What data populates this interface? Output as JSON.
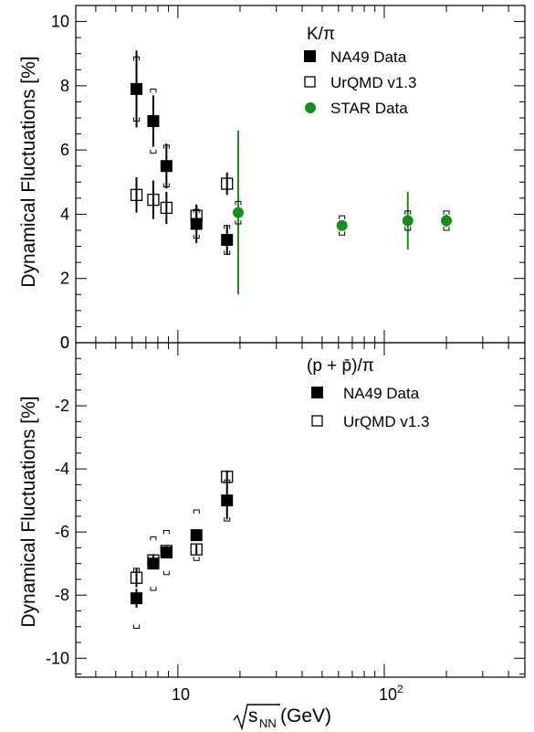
{
  "chart_data": [
    {
      "type": "scatter",
      "title": "",
      "panel_label": "K/π",
      "xlabel": "√sNN (GeV)",
      "ylabel": "Dynamical Fluctuations [%]",
      "xscale": "log",
      "xlim": [
        3.2,
        480
      ],
      "ylim": [
        0,
        10.5
      ],
      "yticks": [
        0,
        2,
        4,
        6,
        8,
        10
      ],
      "grid": false,
      "legend_position": "top-right",
      "series": [
        {
          "name": "NA49 Data",
          "marker": "filled-square",
          "color": "#000000",
          "x": [
            6.3,
            7.6,
            8.8,
            12.3,
            17.3
          ],
          "y": [
            7.9,
            6.9,
            5.5,
            3.7,
            3.2
          ],
          "stat_err": [
            1.2,
            0.8,
            0.7,
            0.6,
            0.45
          ],
          "sys_err": [
            1.0,
            1.0,
            0.65,
            0.45,
            0.45
          ]
        },
        {
          "name": "UrQMD v1.3",
          "marker": "open-square",
          "color": "#000000",
          "x": [
            6.3,
            7.6,
            8.8,
            12.3,
            17.3
          ],
          "y": [
            4.6,
            4.45,
            4.2,
            3.95,
            4.95
          ],
          "stat_err": [
            0.55,
            0.6,
            0.5,
            0.35,
            0.35
          ],
          "sys_err": [
            0,
            0,
            0,
            0,
            0
          ]
        },
        {
          "name": "STAR Data",
          "marker": "filled-circle",
          "color": "#1a8c1a",
          "x": [
            19.6,
            62.4,
            130,
            200
          ],
          "y": [
            4.05,
            3.65,
            3.8,
            3.8
          ],
          "stat_err": [
            2.55,
            0.15,
            0.9,
            0.2
          ],
          "sys_err": [
            0.35,
            0.3,
            0.3,
            0.3
          ]
        }
      ]
    },
    {
      "type": "scatter",
      "title": "",
      "panel_label": "(p + p̄)/π",
      "xlabel": "√sNN (GeV)",
      "ylabel": "Dynamical Fluctuations [%]",
      "xscale": "log",
      "xlim": [
        3.2,
        480
      ],
      "xticks_labeled": [
        10,
        100
      ],
      "ylim": [
        -10.6,
        0
      ],
      "yticks": [
        -10,
        -8,
        -6,
        -4,
        -2,
        0
      ],
      "grid": false,
      "legend_position": "top-right",
      "series": [
        {
          "name": "NA49 Data",
          "marker": "filled-square",
          "color": "#000000",
          "x": [
            6.3,
            7.6,
            8.8,
            12.3,
            17.3
          ],
          "y": [
            -8.1,
            -7.0,
            -6.65,
            -6.1,
            -5.0
          ],
          "stat_err": [
            0.3,
            0.15,
            0.15,
            0.15,
            0.6
          ],
          "sys_err": [
            0.95,
            0.85,
            0.7,
            0.8,
            0.65
          ]
        },
        {
          "name": "UrQMD v1.3",
          "marker": "open-square",
          "color": "#000000",
          "x": [
            6.3,
            7.6,
            8.8,
            12.3,
            17.3
          ],
          "y": [
            -7.45,
            -6.9,
            -6.6,
            -6.55,
            -4.25
          ],
          "stat_err": [
            0.3,
            0.2,
            0.15,
            0.15,
            0.2
          ],
          "sys_err": [
            0,
            0,
            0,
            0,
            0
          ]
        }
      ]
    }
  ],
  "xaxis": {
    "label_main": "√s",
    "label_sub": "NN",
    "label_unit": " (GeV)",
    "tick_10_base": "10",
    "tick_100_base": "10",
    "tick_100_exp": "2"
  }
}
